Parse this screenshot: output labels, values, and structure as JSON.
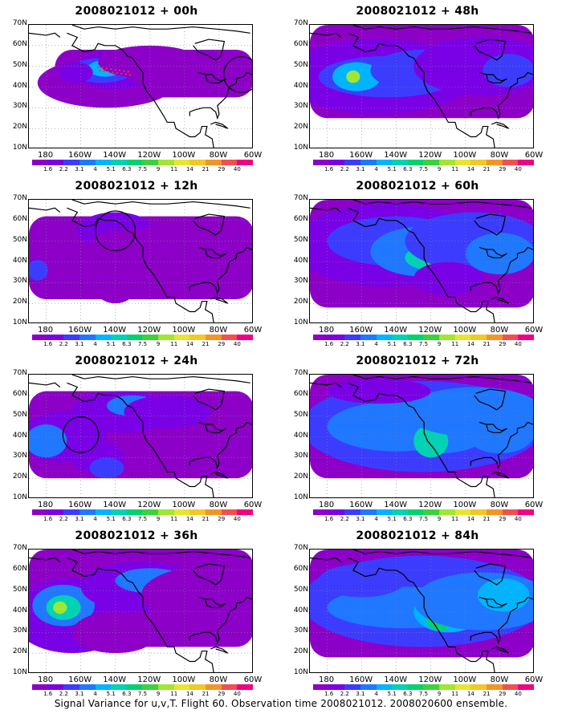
{
  "figure": {
    "caption": "Signal Variance for u,v,T. Flight 60. Observation time 2008021012. 2008020600 ensemble.",
    "lat_labels": [
      "10N",
      "20N",
      "30N",
      "40N",
      "50N",
      "60N",
      "70N"
    ],
    "lon_labels": [
      "180",
      "160W",
      "140W",
      "120W",
      "100W",
      "80W",
      "60W"
    ],
    "colorbar": {
      "labels": [
        "1.6",
        "2.2",
        "3.1",
        "4",
        "5.1",
        "6.3",
        "7.5",
        "9",
        "11",
        "14",
        "21",
        "29",
        "40"
      ],
      "colors": [
        "#8c00c8",
        "#7a00e6",
        "#3c3cff",
        "#1f78ff",
        "#00b4ff",
        "#00d2b4",
        "#00d26e",
        "#3cd23c",
        "#a0e632",
        "#e6e632",
        "#f0c828",
        "#f09628",
        "#f05050",
        "#f00082"
      ]
    }
  },
  "panels": [
    {
      "title": "2008021012 + 00h",
      "circles": [
        {
          "lon": -67,
          "lat": 46,
          "r": 9
        }
      ],
      "dots": true
    },
    {
      "title": "2008021012 + 12h",
      "circles": [
        {
          "lon": -140,
          "lat": 55,
          "r": 10
        }
      ],
      "dots": false
    },
    {
      "title": "2008021012 + 24h",
      "circles": [
        {
          "lon": -160,
          "lat": 41,
          "r": 9
        }
      ],
      "dots": false
    },
    {
      "title": "2008021012 + 36h",
      "circles": [],
      "dots": false
    },
    {
      "title": "2008021012 + 48h",
      "circles": [],
      "dots": false
    },
    {
      "title": "2008021012 + 60h",
      "circles": [],
      "dots": false
    },
    {
      "title": "2008021012 + 72h",
      "circles": [],
      "dots": false
    },
    {
      "title": "2008021012 + 84h",
      "circles": [],
      "dots": false
    }
  ]
}
